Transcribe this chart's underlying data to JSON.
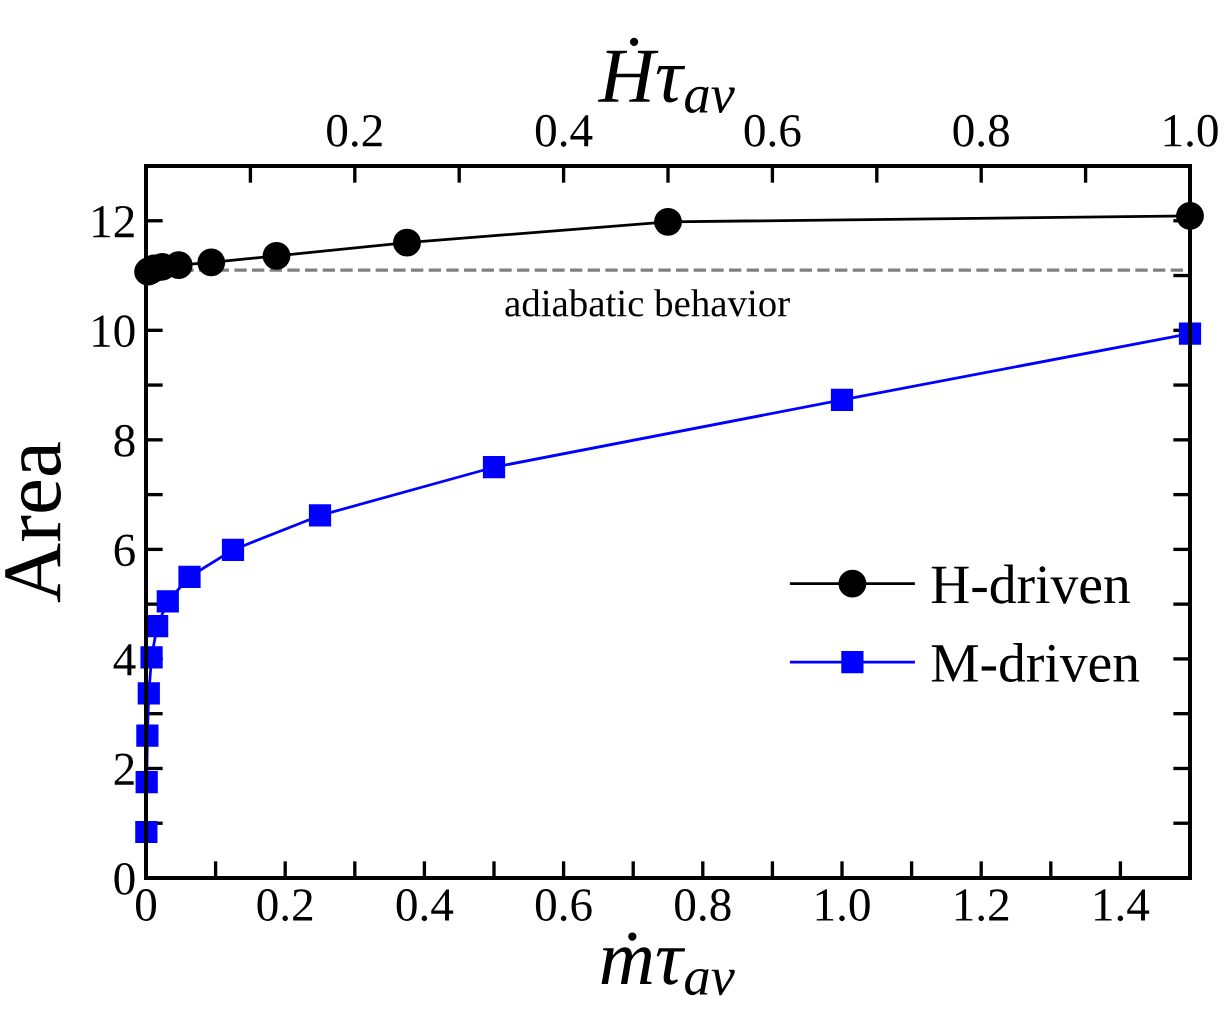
{
  "chart_data": {
    "type": "line",
    "xlabel": "ṁτ$_{av}$",
    "x2label": "Ḣτ$_{av}$",
    "ylabel": "Area",
    "xlim": [
      0,
      1.5
    ],
    "xticks": [
      0,
      {
        "value": 0.1,
        "label": null
      },
      0.2,
      {
        "value": 0.3,
        "label": null
      },
      0.4,
      {
        "value": 0.5,
        "label": null
      },
      0.6,
      {
        "value": 0.7,
        "label": null
      },
      0.8,
      {
        "value": 0.9,
        "label": null
      },
      {
        "value": 1.0,
        "label": "1.0"
      },
      {
        "value": 1.1,
        "label": null
      },
      1.2,
      {
        "value": 1.3,
        "label": null
      },
      1.4,
      {
        "value": 1.5,
        "label": null
      }
    ],
    "x2lim": [
      0,
      1.0
    ],
    "x2ticks": [
      {
        "value": 0,
        "label": null
      },
      {
        "value": 0.1,
        "label": null
      },
      0.2,
      {
        "value": 0.3,
        "label": null
      },
      0.4,
      {
        "value": 0.5,
        "label": null
      },
      0.6,
      {
        "value": 0.7,
        "label": null
      },
      0.8,
      {
        "value": 0.9,
        "label": null
      },
      {
        "value": 1.0,
        "label": "1.0"
      }
    ],
    "ylim": [
      0,
      13
    ],
    "yticks": [
      0,
      {
        "value": 1,
        "label": null
      },
      2,
      {
        "value": 3,
        "label": null
      },
      4,
      {
        "value": 5,
        "label": null
      },
      6,
      {
        "value": 7,
        "label": null
      },
      8,
      {
        "value": 9,
        "label": null
      },
      10,
      {
        "value": 11,
        "label": null
      },
      12,
      {
        "value": 13,
        "label": null
      }
    ],
    "series": [
      {
        "name": "H-driven",
        "color": "#000000",
        "marker": "circle",
        "axis": "x2",
        "x": [
          0.002,
          0.0039,
          0.0078,
          0.0156,
          0.0313,
          0.0625,
          0.125,
          0.25,
          0.5,
          1.0
        ],
        "values": [
          11.07,
          11.09,
          11.13,
          11.16,
          11.19,
          11.24,
          11.36,
          11.6,
          11.98,
          12.09
        ]
      },
      {
        "name": "M-driven",
        "color": "#0000ff",
        "marker": "square",
        "x": [
          0.0005,
          0.001,
          0.002,
          0.004,
          0.008,
          0.016,
          0.0313,
          0.0625,
          0.125,
          0.25,
          0.5,
          1.0,
          1.5
        ],
        "values": [
          0.84,
          1.75,
          2.6,
          3.37,
          4.03,
          4.6,
          5.05,
          5.5,
          5.99,
          6.62,
          7.5,
          8.73,
          9.94
        ]
      }
    ],
    "ref_lines": [
      {
        "axis": "y",
        "value": 11.1,
        "label": "adiabatic behavior",
        "color": "#808080",
        "line_style": "dashed"
      }
    ],
    "legend": "right",
    "grid": false
  }
}
